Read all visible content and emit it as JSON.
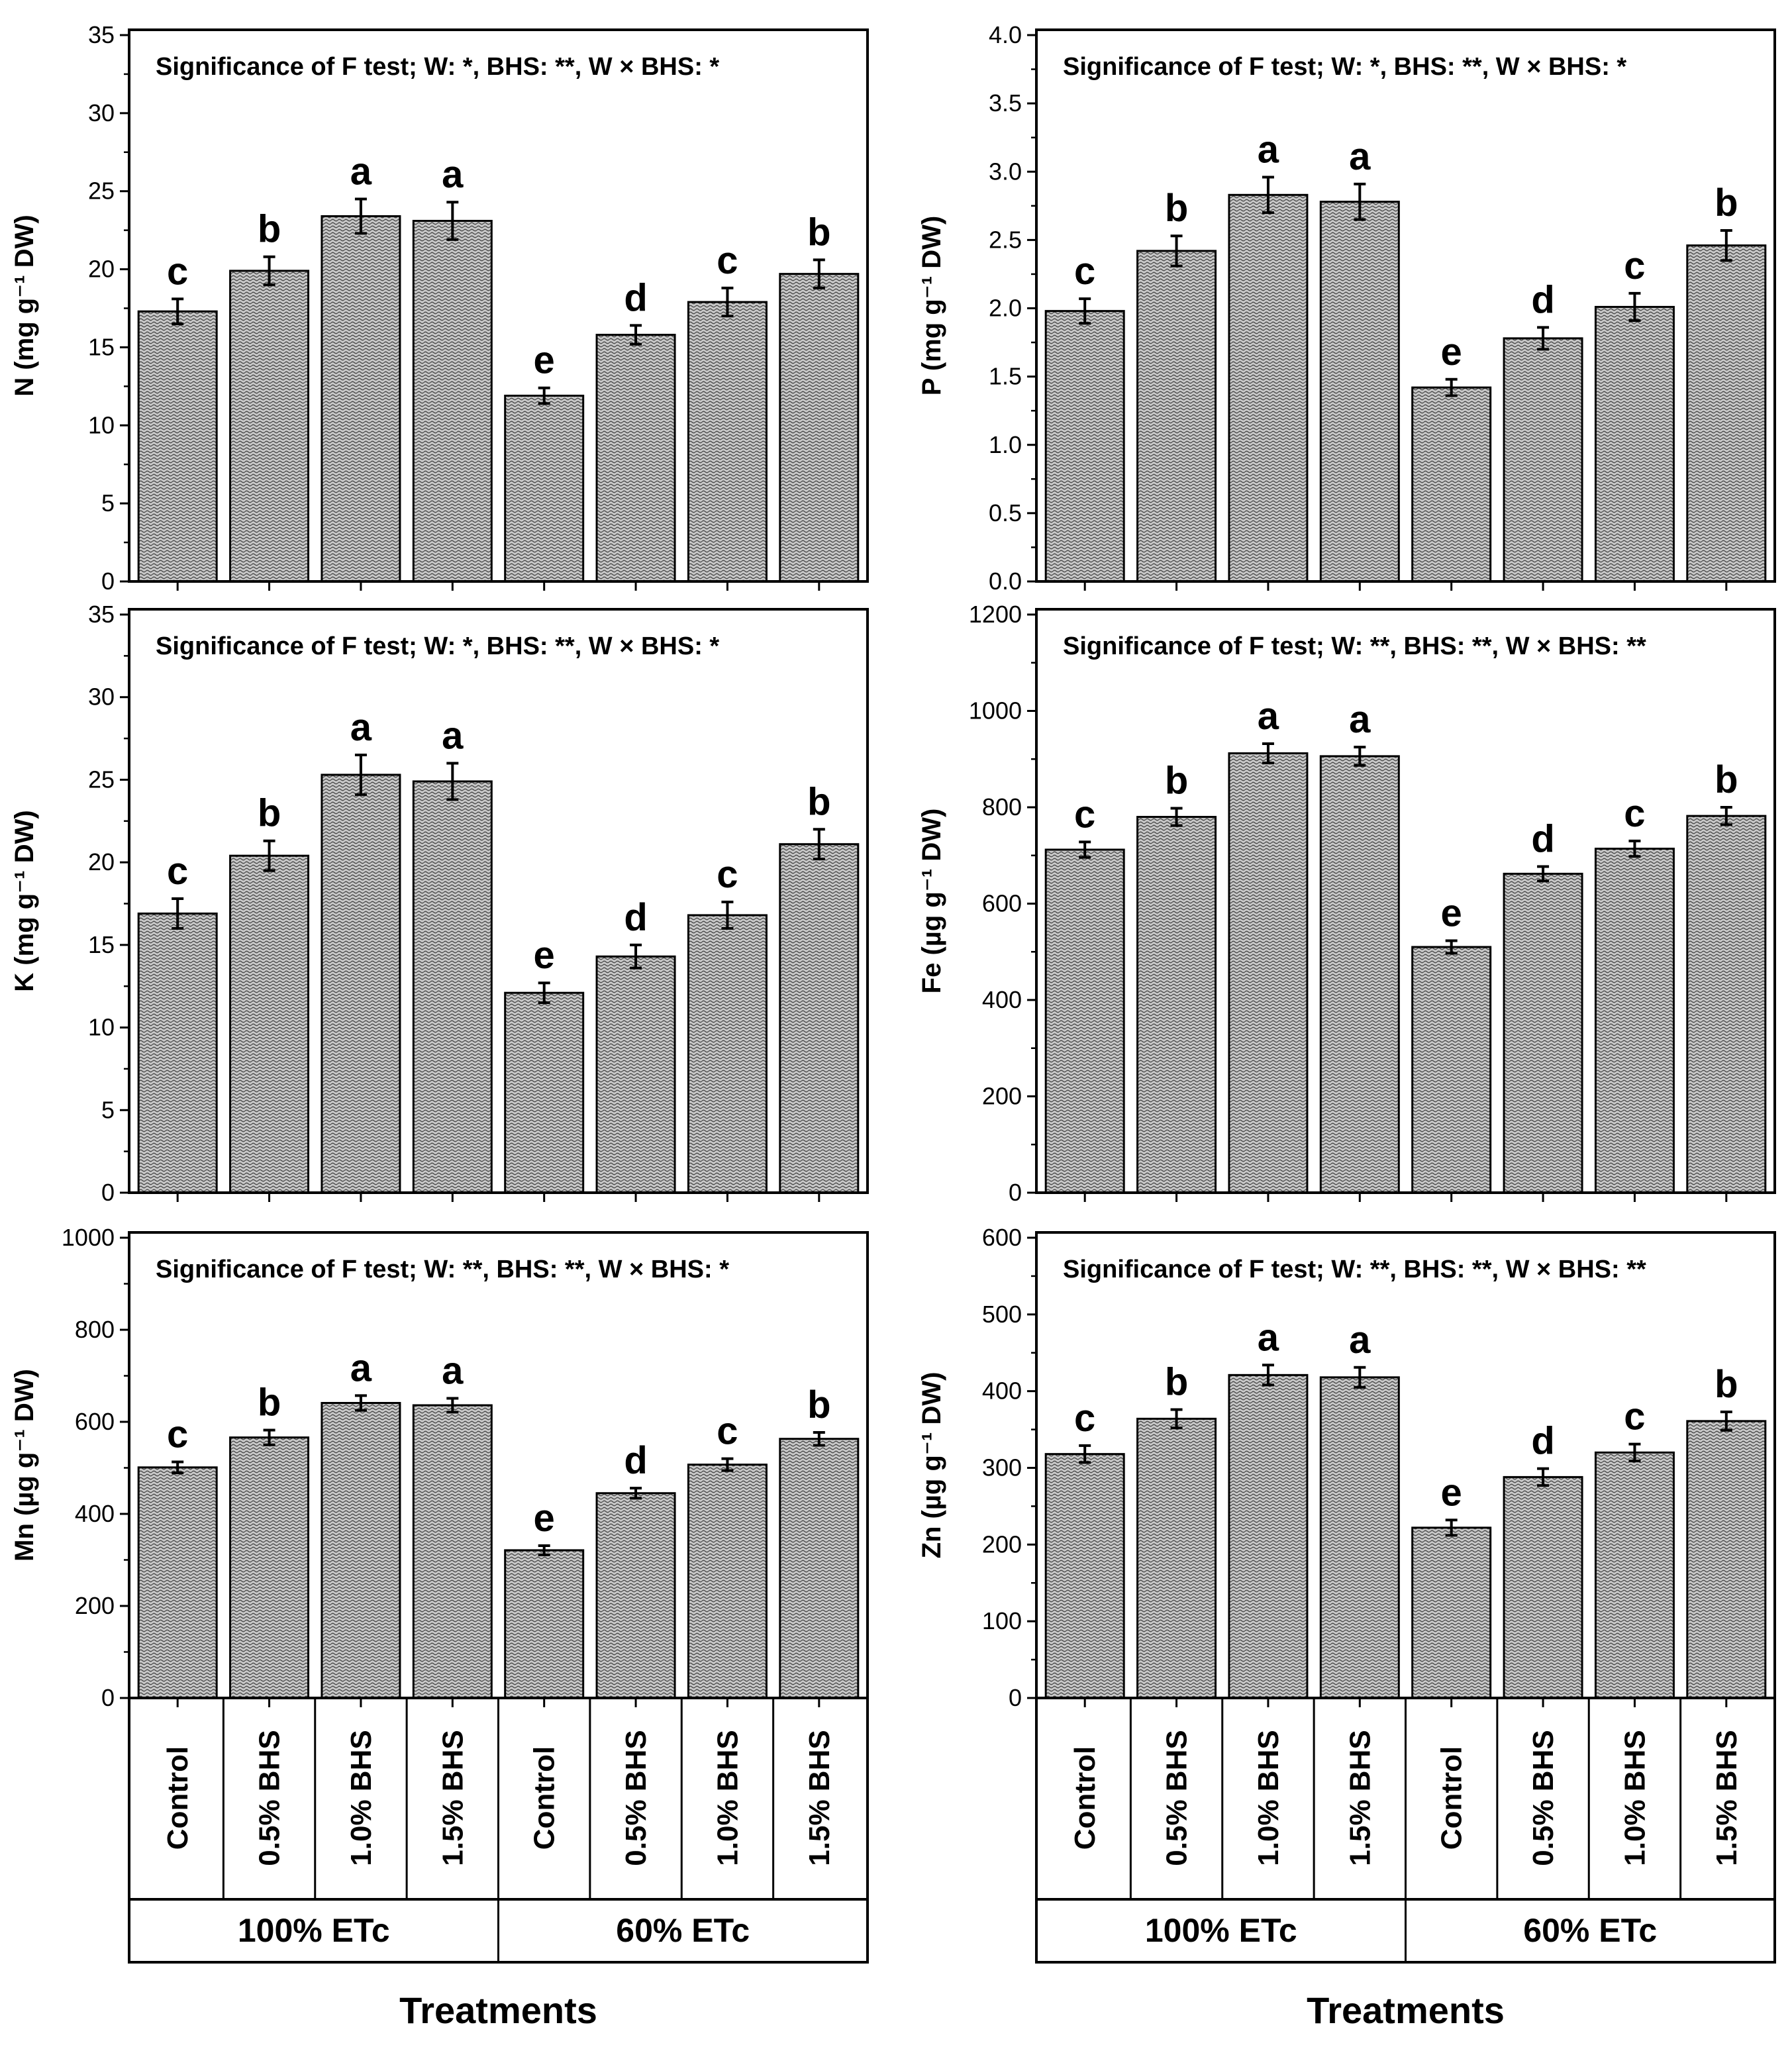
{
  "figure": {
    "x_title": "Treatments",
    "categories": [
      "Control",
      "0.5% BHS",
      "1.0% BHS",
      "1.5% BHS",
      "Control",
      "0.5% BHS",
      "1.0% BHS",
      "1.5% BHS"
    ],
    "groups": [
      "100% ETc",
      "60% ETc"
    ]
  },
  "chart_data": [
    {
      "type": "bar",
      "title": "Significance of F test; W: *, BHS: **, W × BHS: *",
      "ylabel": "N (mg g⁻¹ DW)",
      "ylim": [
        0,
        35
      ],
      "yticks": [
        0,
        5,
        10,
        15,
        20,
        25,
        30,
        35
      ],
      "ytick_labels": [
        "0",
        "5",
        "10",
        "15",
        "20",
        "25",
        "30",
        "35"
      ],
      "values": [
        17.3,
        19.9,
        23.4,
        23.1,
        11.9,
        15.8,
        17.9,
        19.7
      ],
      "errors": [
        0.8,
        0.9,
        1.1,
        1.2,
        0.5,
        0.6,
        0.9,
        0.9
      ],
      "letters": [
        "c",
        "b",
        "a",
        "a",
        "e",
        "d",
        "c",
        "b"
      ]
    },
    {
      "type": "bar",
      "title": "Significance of F test; W: *, BHS: **, W × BHS: *",
      "ylabel": "P (mg g⁻¹ DW)",
      "ylim": [
        0,
        4.0
      ],
      "yticks": [
        0,
        0.5,
        1.0,
        1.5,
        2.0,
        2.5,
        3.0,
        3.5,
        4.0
      ],
      "ytick_labels": [
        "0.0",
        "0.5",
        "1.0",
        "1.5",
        "2.0",
        "2.5",
        "3.0",
        "3.5",
        "4.0"
      ],
      "values": [
        1.98,
        2.42,
        2.83,
        2.78,
        1.42,
        1.78,
        2.01,
        2.46
      ],
      "errors": [
        0.09,
        0.11,
        0.13,
        0.13,
        0.06,
        0.08,
        0.1,
        0.11
      ],
      "letters": [
        "c",
        "b",
        "a",
        "a",
        "e",
        "d",
        "c",
        "b"
      ]
    },
    {
      "type": "bar",
      "title": "Significance of F test; W: *, BHS: **, W × BHS: *",
      "ylabel": "K (mg g⁻¹ DW)",
      "ylim": [
        0,
        35
      ],
      "yticks": [
        0,
        5,
        10,
        15,
        20,
        25,
        30,
        35
      ],
      "ytick_labels": [
        "0",
        "5",
        "10",
        "15",
        "20",
        "25",
        "30",
        "35"
      ],
      "values": [
        16.9,
        20.4,
        25.3,
        24.9,
        12.1,
        14.3,
        16.8,
        21.1
      ],
      "errors": [
        0.9,
        0.9,
        1.2,
        1.1,
        0.6,
        0.7,
        0.8,
        0.9
      ],
      "letters": [
        "c",
        "b",
        "a",
        "a",
        "e",
        "d",
        "c",
        "b"
      ]
    },
    {
      "type": "bar",
      "title": "Significance of F test; W: **, BHS: **, W × BHS: **",
      "ylabel": "Fe (µg g⁻¹ DW)",
      "ylim": [
        0,
        1200
      ],
      "yticks": [
        0,
        200,
        400,
        600,
        800,
        1000,
        1200
      ],
      "ytick_labels": [
        "0",
        "200",
        "400",
        "600",
        "800",
        "1000",
        "1200"
      ],
      "values": [
        712,
        780,
        912,
        906,
        510,
        662,
        714,
        782
      ],
      "errors": [
        16,
        18,
        20,
        19,
        13,
        15,
        16,
        18
      ],
      "letters": [
        "c",
        "b",
        "a",
        "a",
        "e",
        "d",
        "c",
        "b"
      ]
    },
    {
      "type": "bar",
      "title": "Significance of F test; W: **, BHS: **, W × BHS: *",
      "ylabel": "Mn (µg g⁻¹ DW)",
      "ylim": [
        0,
        1000
      ],
      "yticks": [
        0,
        200,
        400,
        600,
        800,
        1000
      ],
      "ytick_labels": [
        "0",
        "200",
        "400",
        "600",
        "800",
        "1000"
      ],
      "values": [
        501,
        566,
        641,
        636,
        321,
        445,
        507,
        563
      ],
      "errors": [
        12,
        16,
        16,
        15,
        10,
        11,
        13,
        14
      ],
      "letters": [
        "c",
        "b",
        "a",
        "a",
        "e",
        "d",
        "c",
        "b"
      ]
    },
    {
      "type": "bar",
      "title": "Significance of F test; W: **, BHS: **, W × BHS: **",
      "ylabel": "Zn (µg g⁻¹ DW)",
      "ylim": [
        0,
        600
      ],
      "yticks": [
        0,
        100,
        200,
        300,
        400,
        500,
        600
      ],
      "ytick_labels": [
        "0",
        "100",
        "200",
        "300",
        "400",
        "500",
        "600"
      ],
      "values": [
        318,
        364,
        421,
        418,
        222,
        288,
        320,
        361
      ],
      "errors": [
        11,
        12,
        13,
        13,
        10,
        11,
        11,
        12
      ],
      "letters": [
        "c",
        "b",
        "a",
        "a",
        "e",
        "d",
        "c",
        "b"
      ]
    }
  ]
}
